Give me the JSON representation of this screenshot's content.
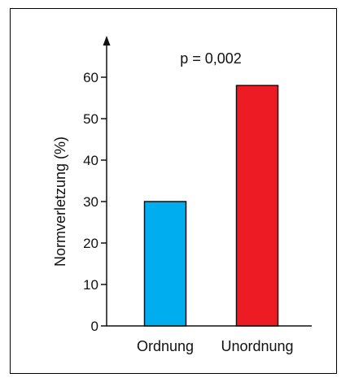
{
  "chart_data": {
    "type": "bar",
    "categories": [
      "Ordnung",
      "Unordnung"
    ],
    "values": [
      30,
      58
    ],
    "colors": [
      "#00aeef",
      "#ed1c24"
    ],
    "title": "",
    "xlabel": "",
    "ylabel": "Normverletzung (%)",
    "ylim": [
      0,
      60
    ],
    "yticks": [
      0,
      10,
      20,
      30,
      40,
      50,
      60
    ],
    "annotation": "p = 0,002",
    "grid": false
  }
}
